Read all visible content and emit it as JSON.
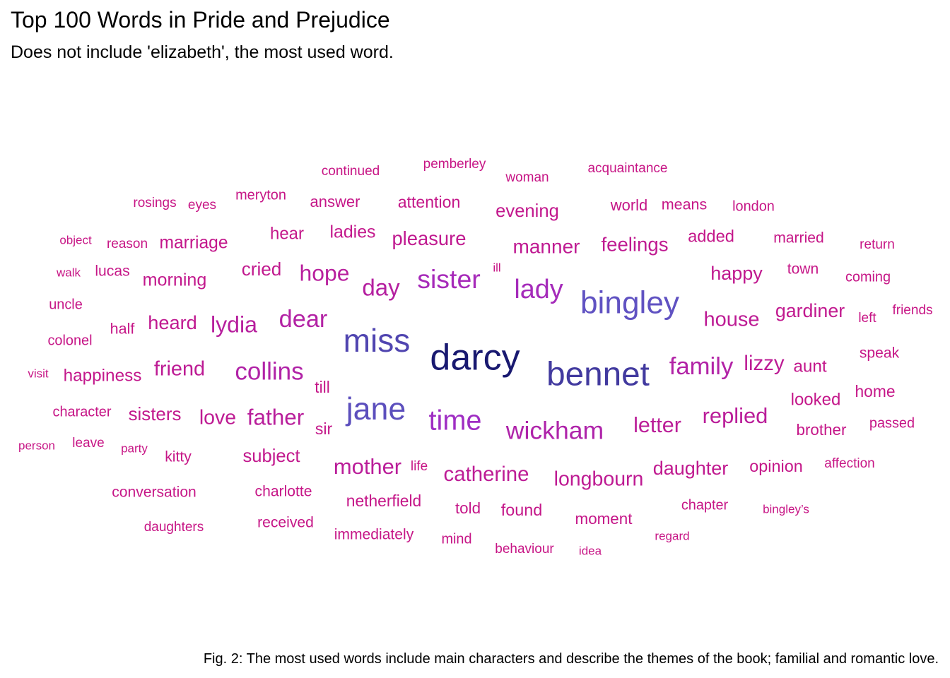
{
  "title": "Top 100 Words in Pride and Prejudice",
  "subtitle": "Does not include 'elizabeth', the most used word.",
  "caption": "Fig. 2: The most used words include main characters and describe the themes of the book; familial and romantic love.",
  "chart_data": {
    "type": "wordcloud",
    "color_scale": {
      "low": "#c71585",
      "mid": "#9932cc",
      "high": "#191970"
    },
    "words": [
      {
        "word": "darcy",
        "freq": 374
      },
      {
        "word": "bennet",
        "freq": 306
      },
      {
        "word": "miss",
        "freq": 283
      },
      {
        "word": "jane",
        "freq": 264
      },
      {
        "word": "bingley",
        "freq": 257
      },
      {
        "word": "time",
        "freq": 203
      },
      {
        "word": "lady",
        "freq": 183
      },
      {
        "word": "sister",
        "freq": 180
      },
      {
        "word": "wickham",
        "freq": 162
      },
      {
        "word": "collins",
        "freq": 156
      },
      {
        "word": "family",
        "freq": 154
      },
      {
        "word": "dear",
        "freq": 150
      },
      {
        "word": "day",
        "freq": 141
      },
      {
        "word": "lydia",
        "freq": 133
      },
      {
        "word": "hope",
        "freq": 132
      },
      {
        "word": "father",
        "freq": 129
      },
      {
        "word": "mother",
        "freq": 125
      },
      {
        "word": "replied",
        "freq": 125
      },
      {
        "word": "letter",
        "freq": 122
      },
      {
        "word": "catherine",
        "freq": 115
      },
      {
        "word": "lizzy",
        "freq": 115
      },
      {
        "word": "house",
        "freq": 113
      },
      {
        "word": "friend",
        "freq": 112
      },
      {
        "word": "longbourn",
        "freq": 110
      },
      {
        "word": "love",
        "freq": 110
      },
      {
        "word": "manner",
        "freq": 107
      },
      {
        "word": "feelings",
        "freq": 105
      },
      {
        "word": "pleasure",
        "freq": 104
      },
      {
        "word": "heard",
        "freq": 103
      },
      {
        "word": "daughter",
        "freq": 102
      },
      {
        "word": "happy",
        "freq": 102
      },
      {
        "word": "gardiner",
        "freq": 101
      },
      {
        "word": "cried",
        "freq": 98
      },
      {
        "word": "sisters",
        "freq": 97
      },
      {
        "word": "evening",
        "freq": 96
      },
      {
        "word": "subject",
        "freq": 96
      },
      {
        "word": "morning",
        "freq": 94
      },
      {
        "word": "ladies",
        "freq": 93
      },
      {
        "word": "marriage",
        "freq": 92
      },
      {
        "word": "aunt",
        "freq": 91
      },
      {
        "word": "happiness",
        "freq": 91
      },
      {
        "word": "hear",
        "freq": 90
      },
      {
        "word": "looked",
        "freq": 90
      },
      {
        "word": "added",
        "freq": 89
      },
      {
        "word": "found",
        "freq": 88
      },
      {
        "word": "opinion",
        "freq": 88
      },
      {
        "word": "attention",
        "freq": 87
      },
      {
        "word": "sir",
        "freq": 87
      },
      {
        "word": "home",
        "freq": 86
      },
      {
        "word": "netherfield",
        "freq": 86
      },
      {
        "word": "till",
        "freq": 86
      },
      {
        "word": "brother",
        "freq": 85
      },
      {
        "word": "moment",
        "freq": 85
      },
      {
        "word": "told",
        "freq": 85
      },
      {
        "word": "answer",
        "freq": 84
      },
      {
        "word": "world",
        "freq": 84
      },
      {
        "word": "half",
        "freq": 83
      },
      {
        "word": "means",
        "freq": 83
      },
      {
        "word": "charlotte",
        "freq": 82
      },
      {
        "word": "conversation",
        "freq": 82
      },
      {
        "word": "immediately",
        "freq": 82
      },
      {
        "word": "kitty",
        "freq": 82
      },
      {
        "word": "lucas",
        "freq": 82
      },
      {
        "word": "married",
        "freq": 82
      },
      {
        "word": "received",
        "freq": 82
      },
      {
        "word": "speak",
        "freq": 82
      },
      {
        "word": "town",
        "freq": 82
      },
      {
        "word": "chapter",
        "freq": 80
      },
      {
        "word": "character",
        "freq": 80
      },
      {
        "word": "colonel",
        "freq": 80
      },
      {
        "word": "coming",
        "freq": 80
      },
      {
        "word": "london",
        "freq": 80
      },
      {
        "word": "meryton",
        "freq": 80
      },
      {
        "word": "mind",
        "freq": 80
      },
      {
        "word": "passed",
        "freq": 80
      },
      {
        "word": "uncle",
        "freq": 80
      },
      {
        "word": "acquaintance",
        "freq": 79
      },
      {
        "word": "affection",
        "freq": 79
      },
      {
        "word": "behaviour",
        "freq": 79
      },
      {
        "word": "continued",
        "freq": 79
      },
      {
        "word": "daughters",
        "freq": 79
      },
      {
        "word": "eyes",
        "freq": 79
      },
      {
        "word": "friends",
        "freq": 79
      },
      {
        "word": "left",
        "freq": 79
      },
      {
        "word": "leave",
        "freq": 79
      },
      {
        "word": "life",
        "freq": 79
      },
      {
        "word": "pemberley",
        "freq": 79
      },
      {
        "word": "reason",
        "freq": 79
      },
      {
        "word": "return",
        "freq": 79
      },
      {
        "word": "rosings",
        "freq": 79
      },
      {
        "word": "woman",
        "freq": 79
      },
      {
        "word": "bingley’s",
        "freq": 78
      },
      {
        "word": "idea",
        "freq": 78
      },
      {
        "word": "ill",
        "freq": 78
      },
      {
        "word": "object",
        "freq": 78
      },
      {
        "word": "party",
        "freq": 78
      },
      {
        "word": "person",
        "freq": 78
      },
      {
        "word": "regard",
        "freq": 78
      },
      {
        "word": "visit",
        "freq": 78
      },
      {
        "word": "walk",
        "freq": 78
      }
    ]
  }
}
